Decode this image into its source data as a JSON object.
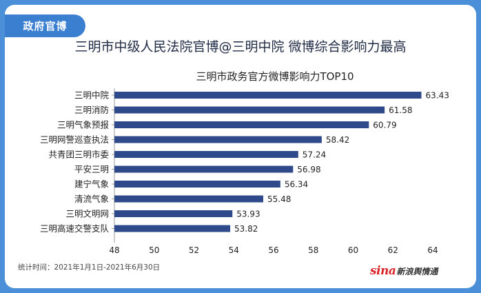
{
  "tag": "政府官博",
  "headline": "三明市中级人民法院官博@三明中院 微博综合影响力最高",
  "footnote": "统计时间：2021年1月1日-2021年6月30日",
  "logo": {
    "sina": "sina",
    "text": "新浪舆情通"
  },
  "colors": {
    "bar": "#2f4a8a",
    "accent": "#3b7fd1",
    "frame": "#4a8fd8"
  },
  "chart_data": {
    "type": "bar",
    "orientation": "horizontal",
    "title": "三明市政务官方微博影响力TOP10",
    "categories": [
      "三明中院",
      "三明消防",
      "三明气象预报",
      "三明网警巡查执法",
      "共青团三明市委",
      "平安三明",
      "建宁气象",
      "清流气象",
      "三明文明网",
      "三明高速交警支队"
    ],
    "values": [
      63.43,
      61.58,
      60.79,
      58.42,
      57.24,
      56.98,
      56.34,
      55.48,
      53.93,
      53.82
    ],
    "value_labels": [
      "63.43",
      "61.58",
      "60.79",
      "58.42",
      "57.24",
      "56.98",
      "56.34",
      "55.48",
      "53.93",
      "53.82"
    ],
    "xlim": [
      48,
      64
    ],
    "xticks": [
      "48",
      "50",
      "52",
      "54",
      "56",
      "58",
      "60",
      "62",
      "64"
    ],
    "grid": false,
    "xlabel": "",
    "ylabel": ""
  }
}
